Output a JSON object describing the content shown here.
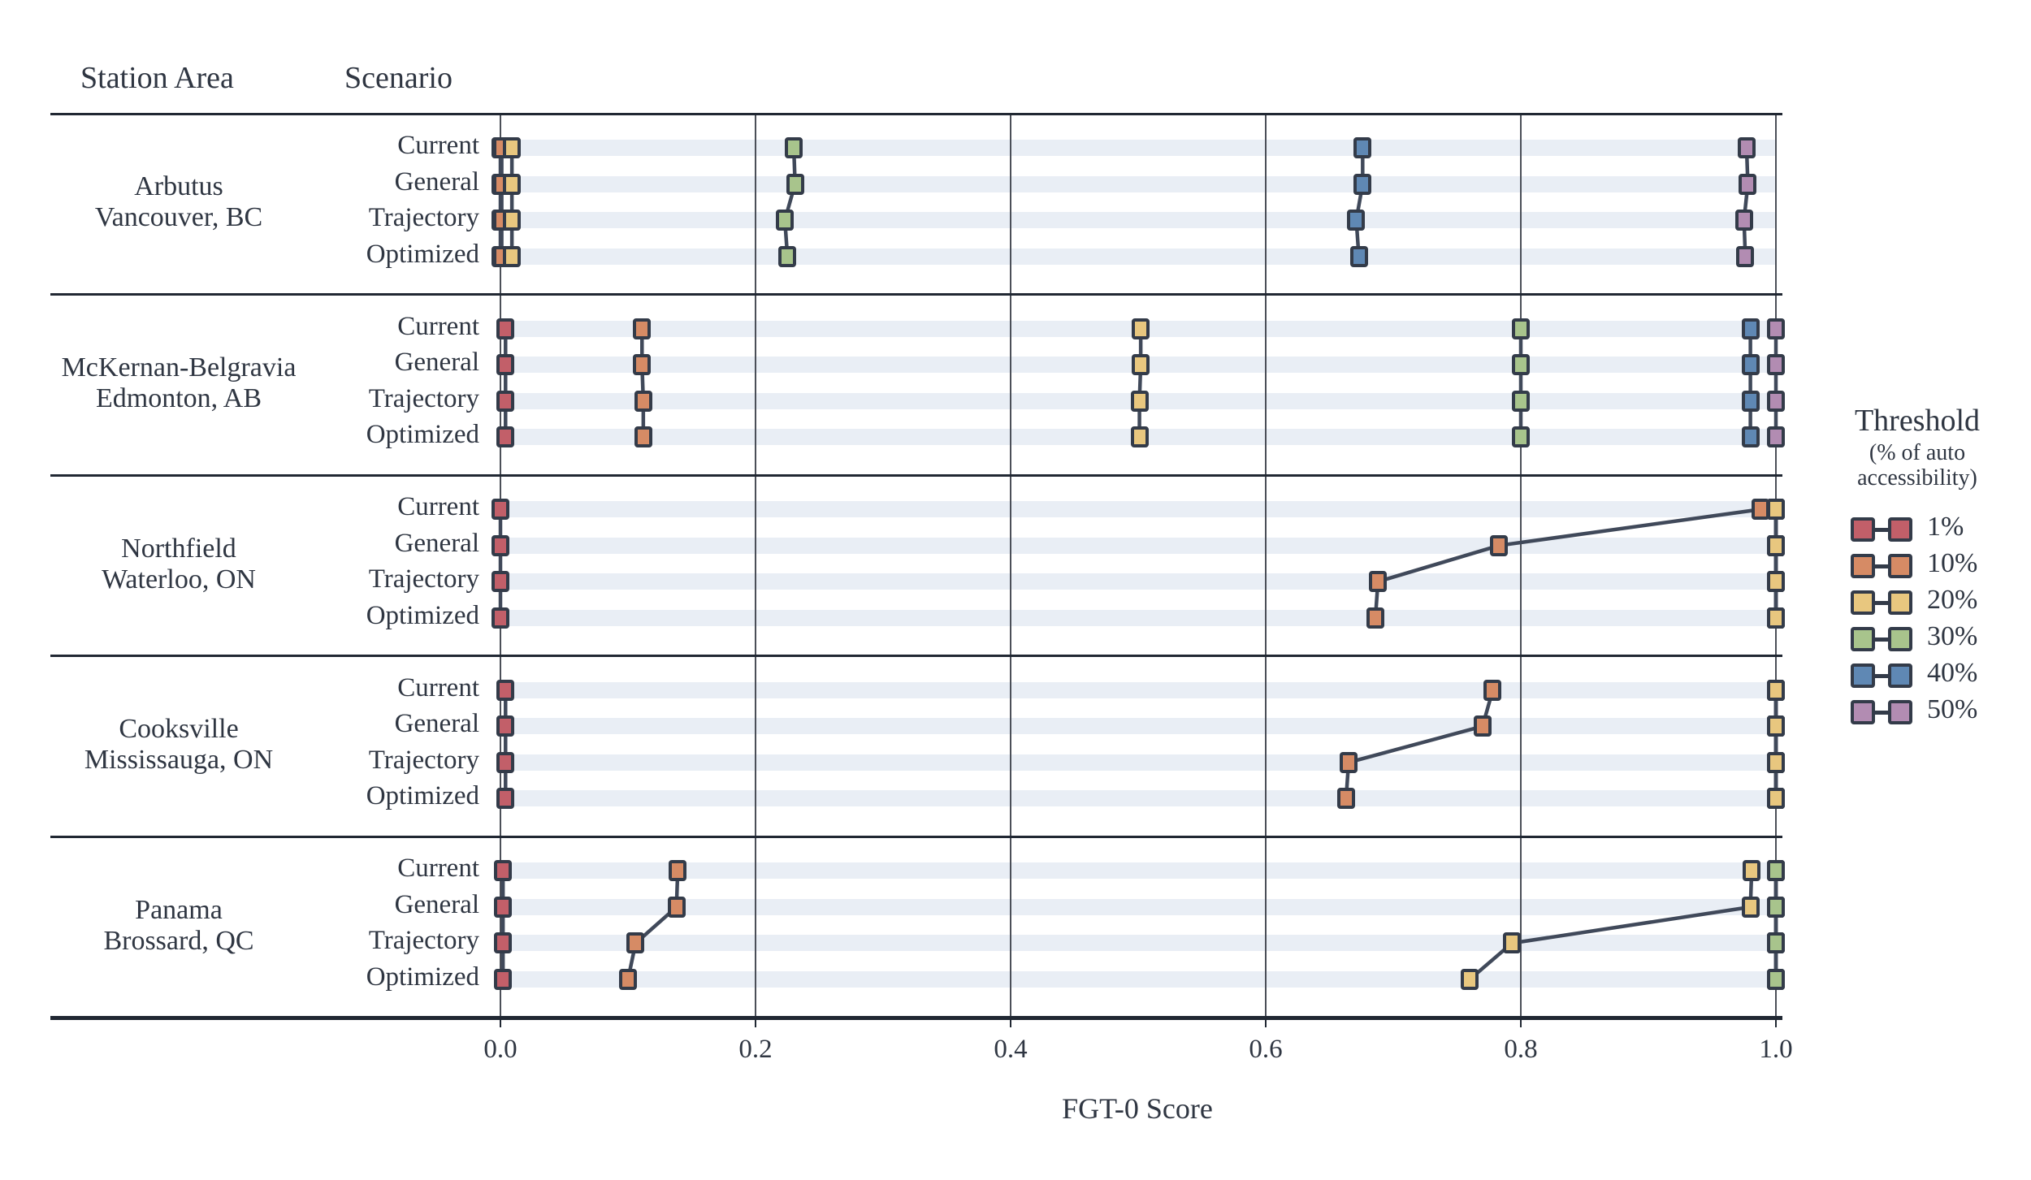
{
  "header": {
    "station_area": "Station Area",
    "scenario": "Scenario"
  },
  "axis": {
    "xlabel": "FGT-0 Score",
    "xticks": [
      "0.0",
      "0.2",
      "0.4",
      "0.6",
      "0.8",
      "1.0"
    ],
    "xtick_values": [
      0.0,
      0.2,
      0.4,
      0.6,
      0.8,
      1.0
    ]
  },
  "legend": {
    "title": "Threshold",
    "subtitle_line1": "(% of auto",
    "subtitle_line2": "accessibility)",
    "entries": [
      {
        "label": "1%",
        "color": "#c25f69"
      },
      {
        "label": "10%",
        "color": "#d68b65"
      },
      {
        "label": "20%",
        "color": "#e8c77f"
      },
      {
        "label": "30%",
        "color": "#a8c48c"
      },
      {
        "label": "40%",
        "color": "#5f88b4"
      },
      {
        "label": "50%",
        "color": "#b28cb2"
      }
    ]
  },
  "colors": {
    "marker_edge": "#333b49",
    "trend_line": "#40495a",
    "gridline": "#4b4f58",
    "separator": "#212833",
    "row_stripe": "#e9eef5",
    "text": "#2f3642"
  },
  "chart_data": {
    "type": "scatter",
    "title": "",
    "xlabel": "FGT-0 Score",
    "xlim": [
      0.0,
      1.0
    ],
    "xticks": [
      0.0,
      0.2,
      0.4,
      0.6,
      0.8,
      1.0
    ],
    "grid": "vertical",
    "legend_position": "right",
    "scenarios": [
      "Current",
      "General",
      "Trajectory",
      "Optimized"
    ],
    "thresholds": [
      "1%",
      "10%",
      "20%",
      "30%",
      "40%",
      "50%"
    ],
    "threshold_colors": {
      "1%": "#c25f69",
      "10%": "#d68b65",
      "20%": "#e8c77f",
      "30%": "#a8c48c",
      "40%": "#5f88b4",
      "50%": "#b28cb2"
    },
    "draw_order": [
      "50%",
      "40%",
      "30%",
      "1%",
      "10%",
      "20%"
    ],
    "panels": [
      {
        "station": "Arbutus",
        "city": "Vancouver, BC",
        "values": {
          "1%": [
            0.0,
            0.0,
            0.0,
            0.0
          ],
          "10%": [
            0.001,
            0.001,
            0.001,
            0.001
          ],
          "20%": [
            0.009,
            0.009,
            0.009,
            0.009
          ],
          "30%": [
            0.23,
            0.231,
            0.223,
            0.225
          ],
          "40%": [
            0.676,
            0.676,
            0.671,
            0.673
          ],
          "50%": [
            0.977,
            0.978,
            0.975,
            0.976
          ]
        }
      },
      {
        "station": "McKernan-Belgravia",
        "city": "Edmonton, AB",
        "values": {
          "1%": [
            0.004,
            0.004,
            0.004,
            0.004
          ],
          "10%": [
            0.111,
            0.111,
            0.112,
            0.112
          ],
          "20%": [
            0.502,
            0.502,
            0.501,
            0.501
          ],
          "30%": [
            0.8,
            0.8,
            0.8,
            0.8
          ],
          "40%": [
            0.98,
            0.98,
            0.98,
            0.98
          ],
          "50%": [
            1.0,
            1.0,
            1.0,
            1.0
          ]
        }
      },
      {
        "station": "Northfield",
        "city": "Waterloo, ON",
        "values": {
          "1%": [
            0.0,
            0.0,
            0.0,
            0.0
          ],
          "10%": [
            0.988,
            0.783,
            0.688,
            0.686
          ],
          "20%": [
            1.0,
            1.0,
            1.0,
            1.0
          ],
          "30%": [
            1.0,
            1.0,
            1.0,
            1.0
          ],
          "40%": [
            1.0,
            1.0,
            1.0,
            1.0
          ],
          "50%": [
            1.0,
            1.0,
            1.0,
            1.0
          ]
        }
      },
      {
        "station": "Cooksville",
        "city": "Mississauga, ON",
        "values": {
          "1%": [
            0.004,
            0.004,
            0.004,
            0.004
          ],
          "10%": [
            0.778,
            0.77,
            0.665,
            0.663
          ],
          "20%": [
            1.0,
            1.0,
            1.0,
            1.0
          ],
          "30%": [
            1.0,
            1.0,
            1.0,
            1.0
          ],
          "40%": [
            1.0,
            1.0,
            1.0,
            1.0
          ],
          "50%": [
            1.0,
            1.0,
            1.0,
            1.0
          ]
        }
      },
      {
        "station": "Panama",
        "city": "Brossard, QC",
        "values": {
          "1%": [
            0.002,
            0.002,
            0.002,
            0.002
          ],
          "10%": [
            0.139,
            0.138,
            0.106,
            0.1
          ],
          "20%": [
            0.981,
            0.98,
            0.793,
            0.76
          ],
          "30%": [
            1.0,
            1.0,
            1.0,
            1.0
          ],
          "40%": [
            1.0,
            1.0,
            1.0,
            1.0
          ],
          "50%": [
            1.0,
            1.0,
            1.0,
            1.0
          ]
        }
      }
    ]
  }
}
